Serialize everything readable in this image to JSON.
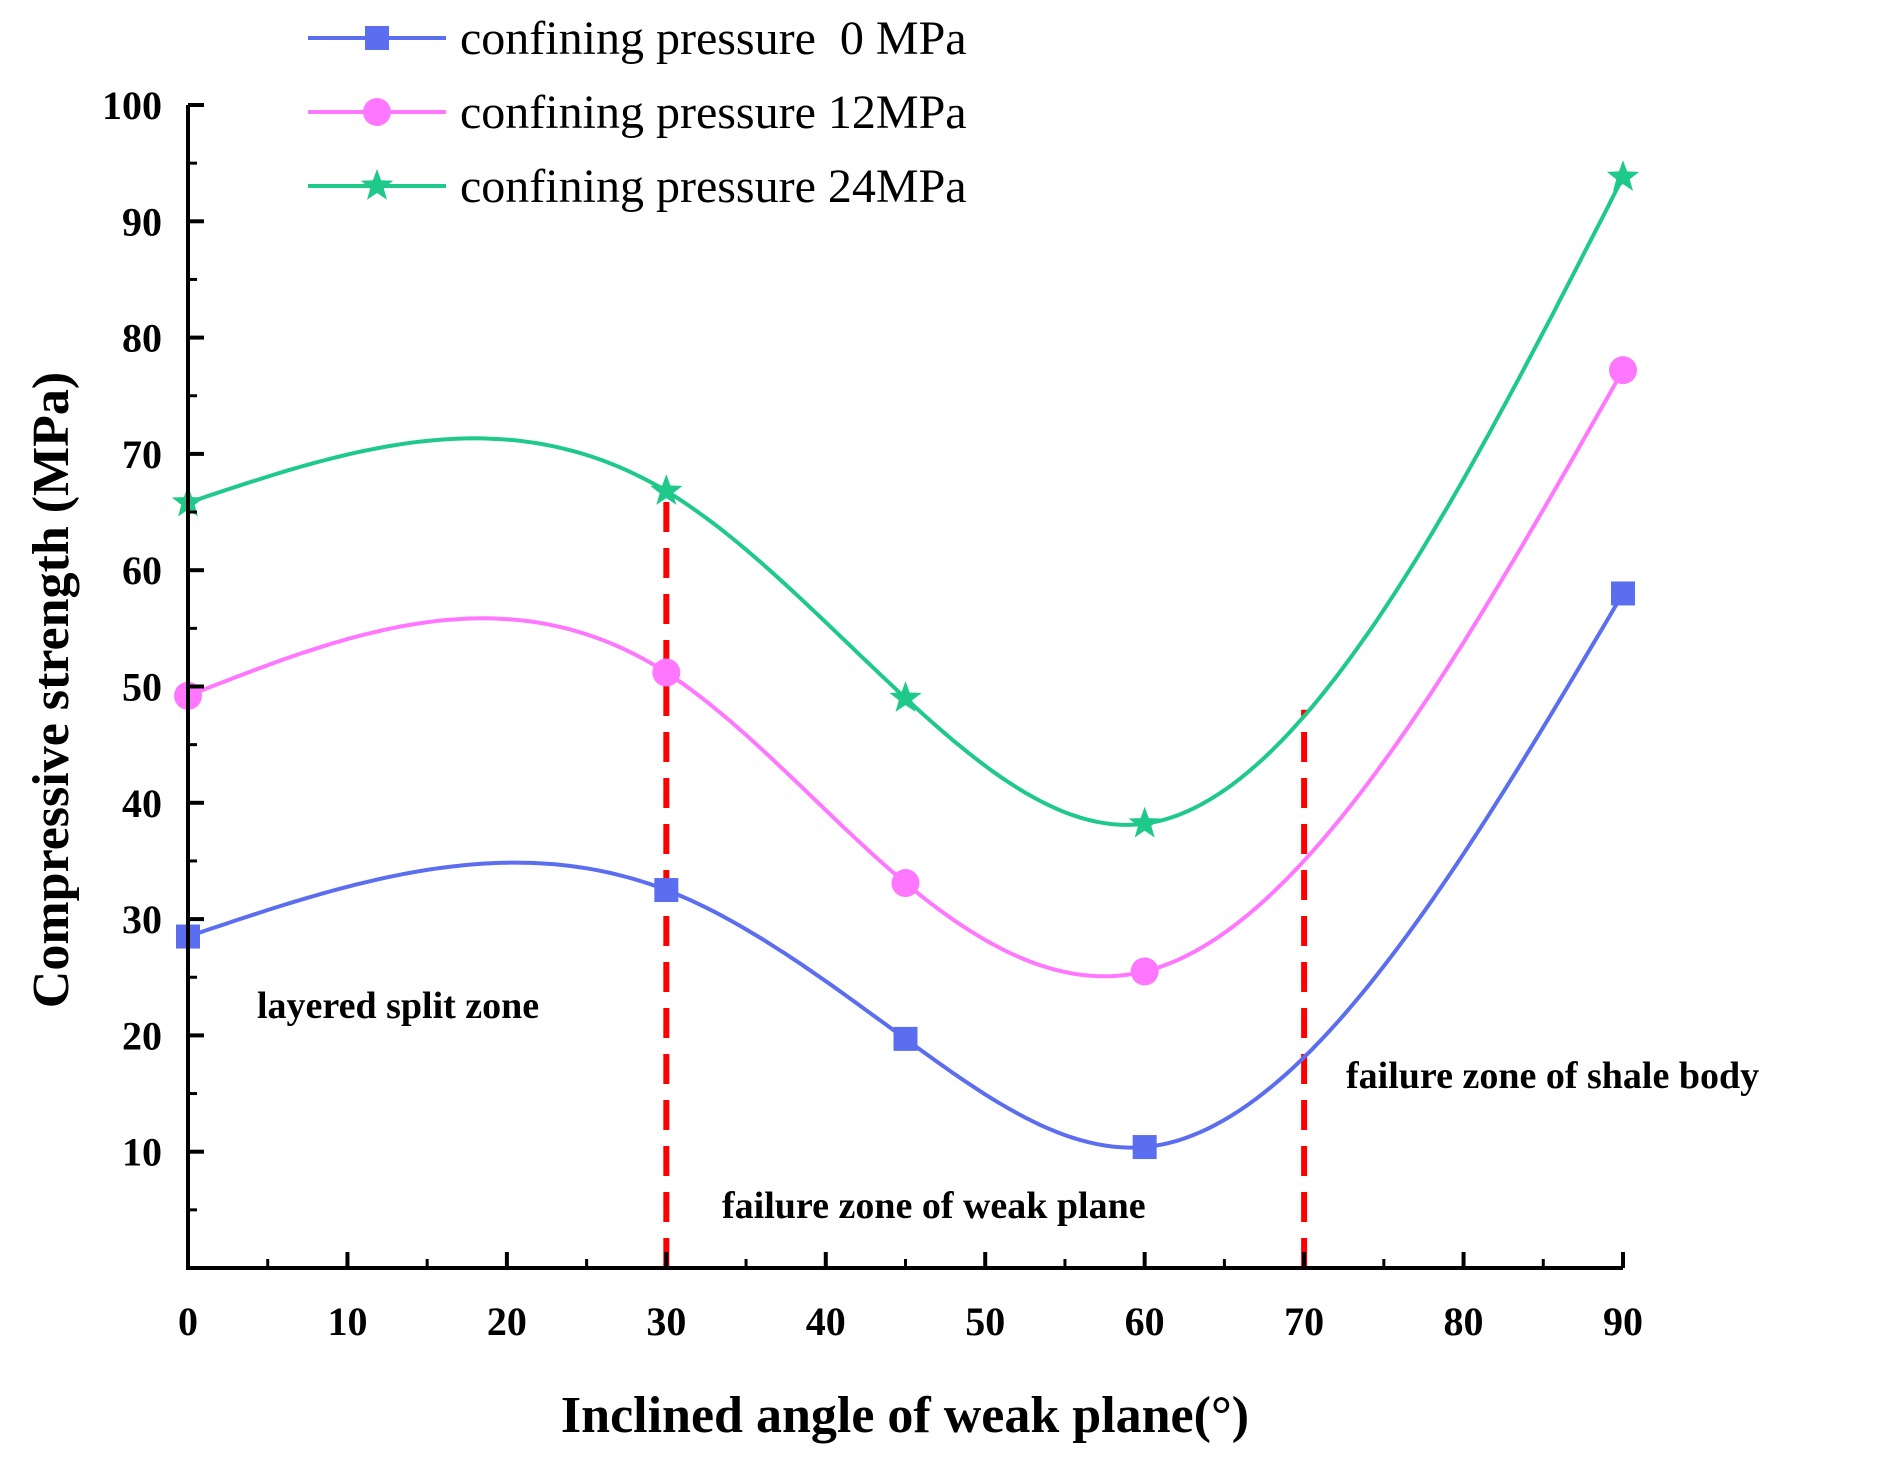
{
  "chart_data": {
    "type": "line",
    "xlabel": "Inclined angle of weak plane(°)",
    "ylabel": "Compressive strength (MPa)",
    "xlim": [
      0,
      90
    ],
    "ylim": [
      0,
      100
    ],
    "x_ticks": [
      0,
      10,
      20,
      30,
      40,
      50,
      60,
      70,
      80,
      90
    ],
    "y_ticks": [
      10,
      20,
      30,
      40,
      50,
      60,
      70,
      80,
      90,
      100
    ],
    "grid": false,
    "legend_position": "top-left",
    "x": [
      0,
      30,
      45,
      60,
      90
    ],
    "series": [
      {
        "name": "confining pressure  0 MPa",
        "values": [
          28.5,
          32.5,
          19.7,
          10.4,
          58.0
        ],
        "color": "#5b6ef0",
        "marker": "square"
      },
      {
        "name": "confining pressure 12MPa",
        "values": [
          49.2,
          51.2,
          33.1,
          25.5,
          77.2
        ],
        "color": "#ff77ff",
        "marker": "circle"
      },
      {
        "name": "confining pressure 24MPa",
        "values": [
          65.8,
          66.8,
          49.0,
          38.2,
          93.8
        ],
        "color": "#1ec98a",
        "marker": "star"
      }
    ],
    "zone_boundaries": [
      30,
      70
    ],
    "boundary_color": "#ff0000",
    "annotations": [
      {
        "text": "layered split zone"
      },
      {
        "text": "failure zone of weak plane"
      },
      {
        "text": "failure zone of shale body"
      }
    ]
  }
}
